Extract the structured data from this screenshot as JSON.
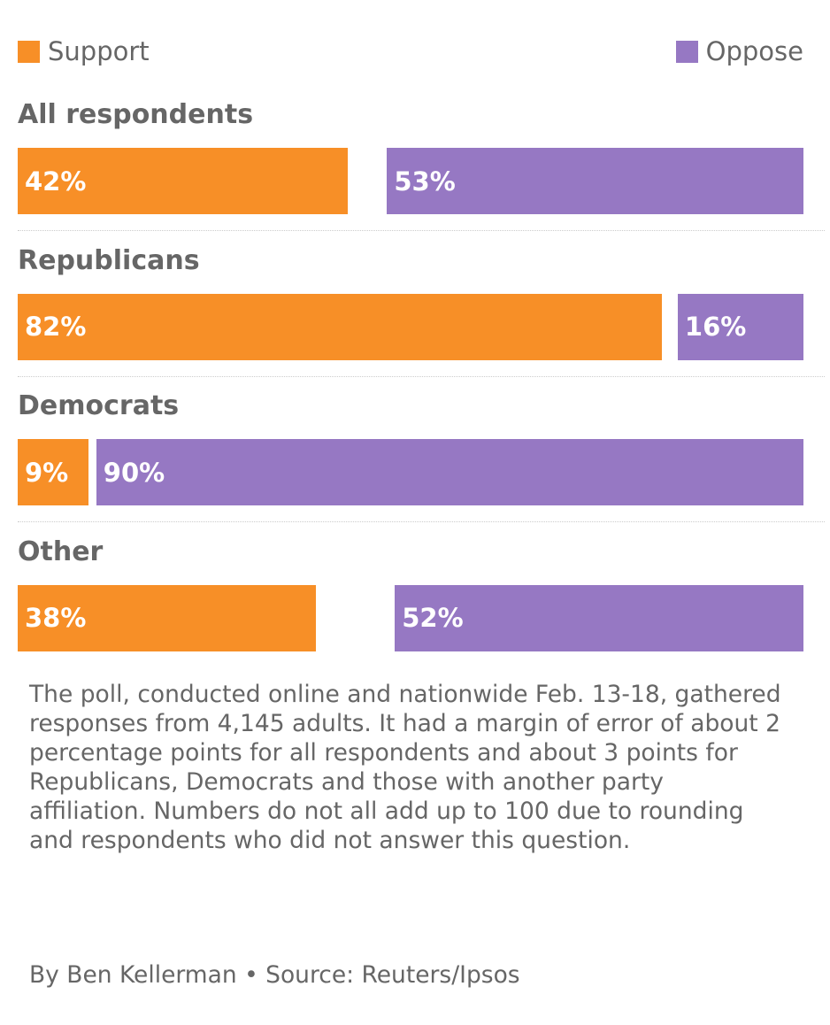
{
  "chart_data": {
    "type": "bar",
    "orientation": "horizontal-diverging",
    "legend": [
      {
        "name": "Support",
        "color": "#F78F27"
      },
      {
        "name": "Oppose",
        "color": "#9678C3"
      }
    ],
    "legend_placement": "top",
    "categories": [
      "All respondents",
      "Republicans",
      "Democrats",
      "Other"
    ],
    "series": [
      {
        "name": "Support",
        "values": [
          42,
          82,
          9,
          38
        ]
      },
      {
        "name": "Oppose",
        "values": [
          53,
          16,
          90,
          52
        ]
      }
    ],
    "unit": "%",
    "xlim": [
      0,
      100
    ]
  },
  "note": "The poll, conducted online and nationwide Feb. 13-18, gathered responses from 4,145 adults. It had a margin of error of about 2 percentage points for all respondents and about 3 points for Republicans, Democrats and those with another party affiliation. Numbers do not all add up to 100 due to rounding and respondents who did not answer this question.",
  "footer": "By Ben Kellerman • Source: Reuters/Ipsos"
}
